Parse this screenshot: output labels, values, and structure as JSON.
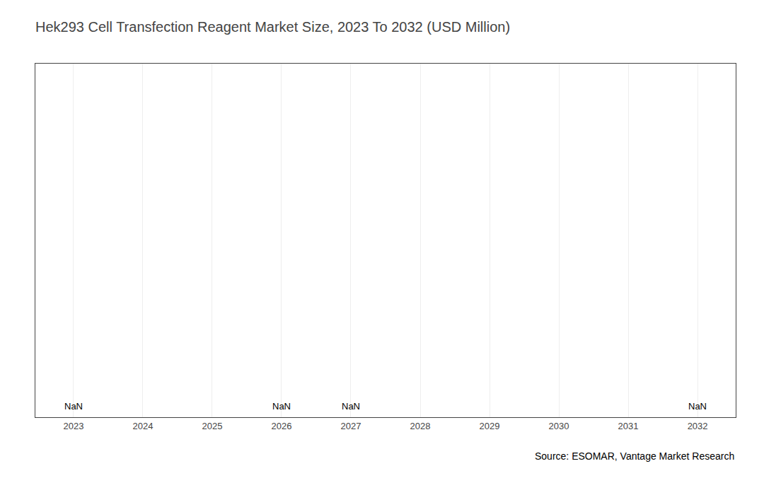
{
  "chart_data": {
    "type": "bar",
    "title": "Hek293 Cell Transfection Reagent Market Size, 2023 To 2032 (USD Million)",
    "x": [
      2023,
      2024,
      2025,
      2026,
      2027,
      2028,
      2029,
      2030,
      2031,
      2032
    ],
    "values": [
      null,
      null,
      null,
      null,
      null,
      null,
      null,
      null,
      null,
      null
    ],
    "xlim": [
      2022.45,
      2032.55
    ],
    "xticks": [
      2023,
      2024,
      2025,
      2026,
      2027,
      2028,
      2029,
      2030,
      2031,
      2032
    ],
    "ylim": [
      0,
      1
    ],
    "yticks": [],
    "tick_labels": "x",
    "grid": true,
    "annotations": [
      {
        "x": 2023,
        "text": "NaN"
      },
      {
        "x": 2026,
        "text": "NaN"
      },
      {
        "x": 2027,
        "text": "NaN"
      },
      {
        "x": 2032,
        "text": "NaN"
      }
    ],
    "source": "Source: ESOMAR, Vantage Market Research"
  }
}
